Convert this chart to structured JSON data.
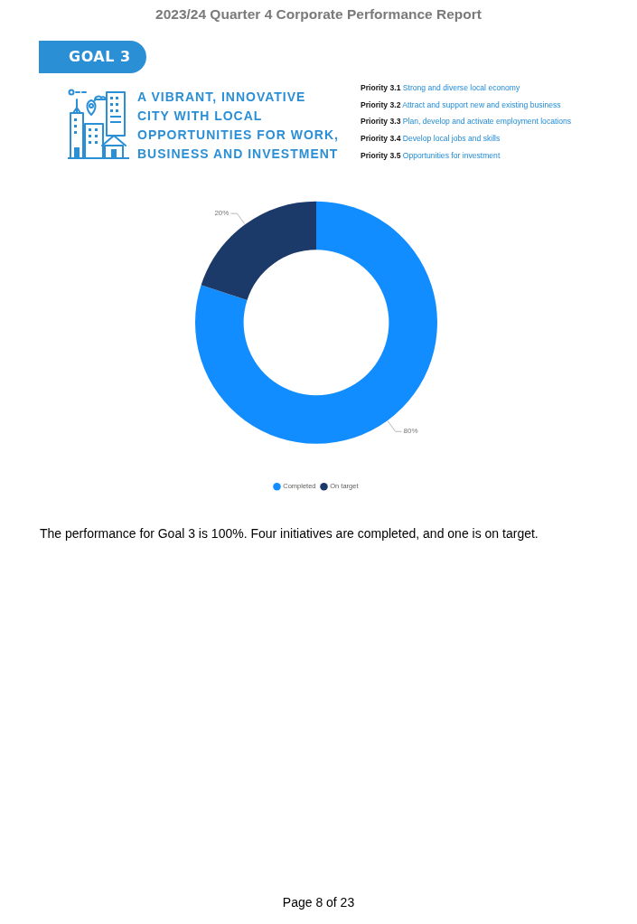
{
  "chart_data": {
    "type": "donut",
    "title": "2023/24 Quarter 4 Corporate Performance Report",
    "categories": [
      "Completed",
      "On target"
    ],
    "values": [
      80,
      20
    ],
    "colors": [
      "#118dff",
      "#1b3a6a"
    ],
    "value_labels": [
      "80%",
      "20%"
    ],
    "legend": "bottom",
    "annotations": [
      "GOAL 3",
      "A VIBRANT, INNOVATIVE CITY WITH LOCAL OPPORTUNITIES FOR WORK, BUSINESS AND INVESTMENT",
      "Priority 3.1",
      "Strong and diverse local economy",
      "Priority 3.2",
      "Attract and support new and existing business",
      "Priority 3.3",
      "Plan, develop and activate employment locations",
      "Priority 3.4",
      "Develop local jobs and skills",
      "Priority 3.5",
      "Opportunities for investment",
      "The performance for Goal 3 is 100%. Four initiatives are completed, and one is on target.",
      "Page 8 of 23"
    ]
  }
}
